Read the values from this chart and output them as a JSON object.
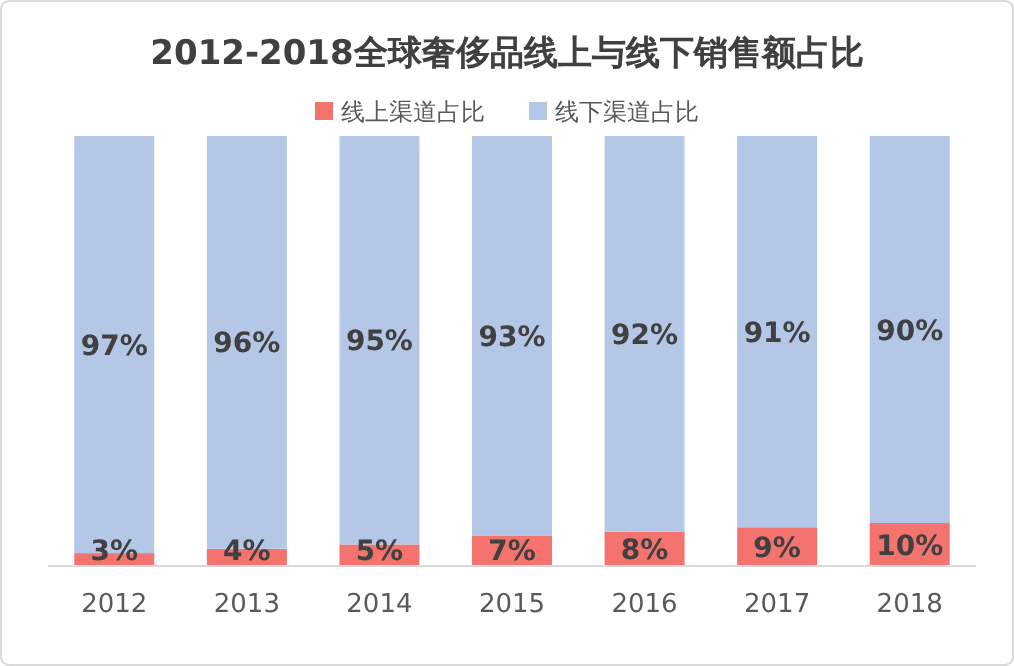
{
  "chart_data": {
    "type": "bar",
    "title": "2012-2018全球奢侈品线上与线下销售额占比",
    "categories": [
      "2012",
      "2013",
      "2014",
      "2015",
      "2016",
      "2017",
      "2018"
    ],
    "stacked": true,
    "legend": "top",
    "series": [
      {
        "name": "线上渠道占比",
        "color": "#f4736e",
        "values": [
          3,
          4,
          5,
          7,
          8,
          9,
          10
        ],
        "value_labels": [
          "3%",
          "4%",
          "5%",
          "7%",
          "8%",
          "9%",
          "10%"
        ]
      },
      {
        "name": "线下渠道占比",
        "color": "#b4c7e7",
        "values": [
          97,
          96,
          95,
          93,
          92,
          91,
          90
        ],
        "value_labels": [
          "97%",
          "96%",
          "95%",
          "93%",
          "92%",
          "91%",
          "90%"
        ]
      }
    ]
  }
}
